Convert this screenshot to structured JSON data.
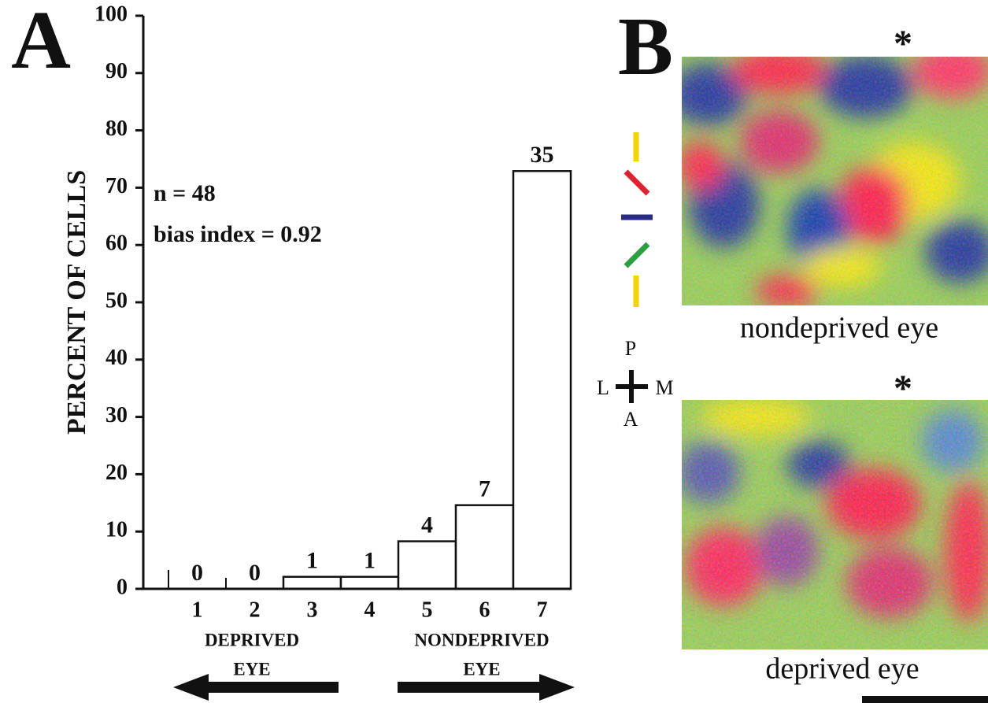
{
  "chart_data": {
    "type": "bar",
    "panel_label": "A",
    "ylabel": "PERCENT OF CELLS",
    "categories": [
      "1",
      "2",
      "3",
      "4",
      "5",
      "6",
      "7"
    ],
    "values": [
      0,
      0,
      2.1,
      2.1,
      8.3,
      14.6,
      72.9
    ],
    "cell_counts": [
      0,
      0,
      1,
      1,
      4,
      7,
      35
    ],
    "color": "#ffffff",
    "ylim": [
      0,
      100
    ],
    "yticks": [
      0,
      10,
      20,
      30,
      40,
      50,
      60,
      70,
      80,
      90,
      100
    ],
    "annotations": [
      "n = 48",
      "bias index = 0.92"
    ],
    "groups": [
      {
        "lines": [
          "DEPRIVED",
          "EYE"
        ]
      },
      {
        "lines": [
          "NONDEPRIVED",
          "EYE"
        ]
      }
    ]
  },
  "panel_b": {
    "label": "B",
    "maps": [
      {
        "caption": "nondeprived eye",
        "marker": "*"
      },
      {
        "caption": "deprived eye",
        "marker": "*"
      }
    ],
    "orientation": {
      "posterior": "P",
      "lateral": "L",
      "medial": "M",
      "anterior": "A"
    }
  }
}
